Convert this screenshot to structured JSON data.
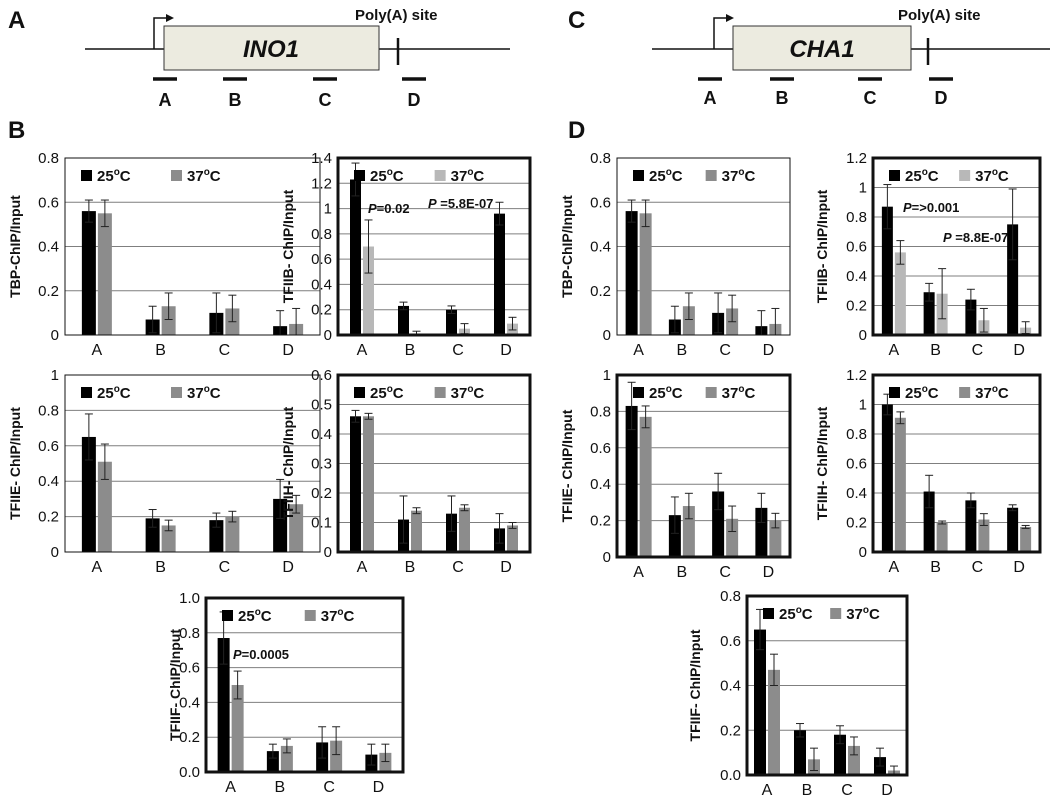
{
  "figure": {
    "panel_labels": {
      "A": "A",
      "B": "B",
      "C": "C",
      "D": "D"
    },
    "gene_diagrams": [
      {
        "panel": "A",
        "gene": "INO1",
        "polya_label": "Poly(A) site",
        "regions": [
          "A",
          "B",
          "C",
          "D"
        ]
      },
      {
        "panel": "C",
        "gene": "CHA1",
        "polya_label": "Poly(A) site",
        "regions": [
          "A",
          "B",
          "C",
          "D"
        ]
      }
    ],
    "colors": {
      "series_25": "#000000",
      "series_37_light": "#b8b8b8",
      "series_37": "#8c8c8c",
      "gene_box": "#ecebe0",
      "grid": "#7f7f7f"
    }
  },
  "chart_data": [
    {
      "id": "B_TBP",
      "type": "bar",
      "ylabel": "TBP-ChIP/Input",
      "categories": [
        "A",
        "B",
        "C",
        "D"
      ],
      "ylim": [
        0,
        0.8
      ],
      "yticks": [
        "0",
        "0.2",
        "0.4",
        "0.6",
        "0.8"
      ],
      "grid": true,
      "legend": "top",
      "series": [
        {
          "name": "25oC",
          "values": [
            0.56,
            0.07,
            0.1,
            0.04
          ],
          "errors": [
            0.05,
            0.06,
            0.09,
            0.07
          ]
        },
        {
          "name": "37oC",
          "values": [
            0.55,
            0.13,
            0.12,
            0.05
          ],
          "errors": [
            0.06,
            0.06,
            0.06,
            0.07
          ]
        }
      ]
    },
    {
      "id": "B_TFIIB",
      "type": "bar",
      "ylabel": "TFIIB- ChIP/Input",
      "categories": [
        "A",
        "B",
        "C",
        "D"
      ],
      "ylim": [
        0,
        1.4
      ],
      "yticks": [
        "0",
        "0.2",
        "0.4",
        "0.6",
        "0.8",
        "1",
        "1.2",
        "1.4"
      ],
      "grid": true,
      "legend": "top",
      "annotations": [
        {
          "p": "P",
          "text": "=0.02"
        },
        {
          "p": "P",
          "text": " =5.8E-07"
        }
      ],
      "series": [
        {
          "name": "25oC",
          "values": [
            1.23,
            0.23,
            0.2,
            0.96
          ],
          "errors": [
            0.13,
            0.03,
            0.03,
            0.09
          ]
        },
        {
          "name": "37oC",
          "values": [
            0.7,
            0.01,
            0.05,
            0.09
          ],
          "errors": [
            0.21,
            0.02,
            0.04,
            0.05
          ]
        }
      ]
    },
    {
      "id": "B_TFIIE",
      "type": "bar",
      "ylabel": "TFIIE- ChIP/Input",
      "categories": [
        "A",
        "B",
        "C",
        "D"
      ],
      "ylim": [
        0,
        1
      ],
      "yticks": [
        "0",
        "0.2",
        "0.4",
        "0.6",
        "0.8",
        "1"
      ],
      "grid": true,
      "legend": "top",
      "series": [
        {
          "name": "25oC",
          "values": [
            0.65,
            0.19,
            0.18,
            0.3
          ],
          "errors": [
            0.13,
            0.05,
            0.04,
            0.11
          ]
        },
        {
          "name": "37oC",
          "values": [
            0.51,
            0.15,
            0.2,
            0.27
          ],
          "errors": [
            0.1,
            0.03,
            0.03,
            0.05
          ]
        }
      ]
    },
    {
      "id": "B_TFIIH",
      "type": "bar",
      "ylabel": "TFIIH- ChIP/Input",
      "categories": [
        "A",
        "B",
        "C",
        "D"
      ],
      "ylim": [
        0,
        0.6
      ],
      "yticks": [
        "0",
        "0.1",
        "0.2",
        "0.3",
        "0.4",
        "0.5",
        "0.6"
      ],
      "grid": true,
      "legend": "top",
      "series": [
        {
          "name": "25oC",
          "values": [
            0.46,
            0.11,
            0.13,
            0.08
          ],
          "errors": [
            0.02,
            0.08,
            0.06,
            0.05
          ]
        },
        {
          "name": "37oC",
          "values": [
            0.46,
            0.14,
            0.15,
            0.09
          ],
          "errors": [
            0.01,
            0.01,
            0.01,
            0.01
          ]
        }
      ]
    },
    {
      "id": "B_TFIIF",
      "type": "bar",
      "ylabel": "TFIIF- ChIP/Input",
      "categories": [
        "A",
        "B",
        "C",
        "D"
      ],
      "ylim": [
        0,
        1.0
      ],
      "yticks": [
        "0.0",
        "0.2",
        "0.4",
        "0.6",
        "0.8",
        "1.0"
      ],
      "grid": true,
      "legend": "top",
      "annotations": [
        {
          "p": "P",
          "text": "=0.0005"
        }
      ],
      "series": [
        {
          "name": "25oC",
          "values": [
            0.77,
            0.12,
            0.17,
            0.1
          ],
          "errors": [
            0.15,
            0.04,
            0.09,
            0.06
          ]
        },
        {
          "name": "37oC",
          "values": [
            0.5,
            0.15,
            0.18,
            0.11
          ],
          "errors": [
            0.08,
            0.04,
            0.08,
            0.05
          ]
        }
      ]
    },
    {
      "id": "D_TBP",
      "type": "bar",
      "ylabel": "TBP-ChIP/Input",
      "categories": [
        "A",
        "B",
        "C",
        "D"
      ],
      "ylim": [
        0,
        0.8
      ],
      "yticks": [
        "0",
        "0.2",
        "0.4",
        "0.6",
        "0.8"
      ],
      "grid": true,
      "legend": "top",
      "series": [
        {
          "name": "25oC",
          "values": [
            0.56,
            0.07,
            0.1,
            0.04
          ],
          "errors": [
            0.05,
            0.06,
            0.09,
            0.07
          ]
        },
        {
          "name": "37oC",
          "values": [
            0.55,
            0.13,
            0.12,
            0.05
          ],
          "errors": [
            0.06,
            0.06,
            0.06,
            0.07
          ]
        }
      ]
    },
    {
      "id": "D_TFIIB",
      "type": "bar",
      "ylabel": "TFIIB- ChIP/Input",
      "categories": [
        "A",
        "B",
        "C",
        "D"
      ],
      "ylim": [
        0,
        1.2
      ],
      "yticks": [
        "0",
        "0.2",
        "0.4",
        "0.6",
        "0.8",
        "1",
        "1.2"
      ],
      "grid": true,
      "legend": "top",
      "annotations": [
        {
          "p": "P",
          "text": "=>0.001"
        },
        {
          "p": "P",
          "text": " =8.8E-07"
        }
      ],
      "series": [
        {
          "name": "25oC",
          "values": [
            0.87,
            0.29,
            0.24,
            0.75
          ],
          "errors": [
            0.15,
            0.06,
            0.07,
            0.24
          ]
        },
        {
          "name": "37oC",
          "values": [
            0.56,
            0.28,
            0.1,
            0.05
          ],
          "errors": [
            0.08,
            0.17,
            0.08,
            0.04
          ]
        }
      ]
    },
    {
      "id": "D_TFIIE",
      "type": "bar",
      "ylabel": "TFIIE- ChIP/Input",
      "categories": [
        "A",
        "B",
        "C",
        "D"
      ],
      "ylim": [
        0,
        1
      ],
      "yticks": [
        "0",
        "0.2",
        "0.4",
        "0.6",
        "0.8",
        "1"
      ],
      "grid": true,
      "legend": "top",
      "series": [
        {
          "name": "25oC",
          "values": [
            0.83,
            0.23,
            0.36,
            0.27
          ],
          "errors": [
            0.13,
            0.1,
            0.1,
            0.08
          ]
        },
        {
          "name": "37oC",
          "values": [
            0.77,
            0.28,
            0.21,
            0.2
          ],
          "errors": [
            0.06,
            0.07,
            0.07,
            0.04
          ]
        }
      ]
    },
    {
      "id": "D_TFIIH",
      "type": "bar",
      "ylabel": "TFIIH- ChIP/Input",
      "categories": [
        "A",
        "B",
        "C",
        "D"
      ],
      "ylim": [
        0,
        1.2
      ],
      "yticks": [
        "0",
        "0.2",
        "0.4",
        "0.6",
        "0.8",
        "1",
        "1.2"
      ],
      "grid": true,
      "legend": "top",
      "series": [
        {
          "name": "25oC",
          "values": [
            1.0,
            0.41,
            0.35,
            0.3
          ],
          "errors": [
            0.07,
            0.11,
            0.05,
            0.02
          ]
        },
        {
          "name": "37oC",
          "values": [
            0.91,
            0.2,
            0.22,
            0.17
          ],
          "errors": [
            0.04,
            0.01,
            0.04,
            0.01
          ]
        }
      ]
    },
    {
      "id": "D_TFIIF",
      "type": "bar",
      "ylabel": "TFIIF- ChIP/Input",
      "categories": [
        "A",
        "B",
        "C",
        "D"
      ],
      "ylim": [
        0,
        0.8
      ],
      "yticks": [
        "0.0",
        "0.2",
        "0.4",
        "0.6",
        "0.8"
      ],
      "grid": true,
      "legend": "top",
      "series": [
        {
          "name": "25oC",
          "values": [
            0.65,
            0.2,
            0.18,
            0.08
          ],
          "errors": [
            0.09,
            0.03,
            0.04,
            0.04
          ]
        },
        {
          "name": "37oC",
          "values": [
            0.47,
            0.07,
            0.13,
            0.02
          ],
          "errors": [
            0.07,
            0.05,
            0.04,
            0.02
          ]
        }
      ]
    }
  ]
}
